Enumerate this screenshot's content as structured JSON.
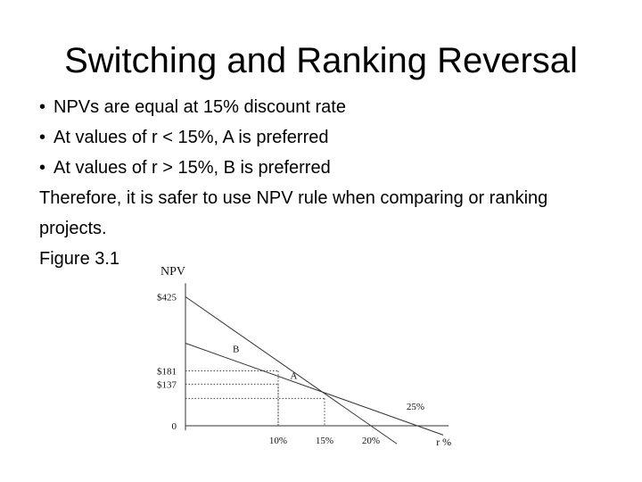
{
  "slide": {
    "title": "Switching and Ranking Reversal",
    "bullets": [
      "NPVs are equal at 15% discount rate",
      "At values of r < 15%, A is preferred",
      "At values of r > 15%, B is preferred"
    ],
    "conclusion": "Therefore, it is safer to use NPV rule when comparing or ranking projects.",
    "figure_label": "Figure 3.1"
  },
  "chart_data": {
    "type": "line",
    "ylabel": "NPV",
    "xlabel": "r %",
    "y_ticks": [
      {
        "value": 425,
        "label": "$425"
      },
      {
        "value": 181,
        "label": "$181"
      },
      {
        "value": 137,
        "label": "$137"
      },
      {
        "value": 0,
        "label": "0"
      }
    ],
    "x_ticks": [
      {
        "value": 10,
        "label": "10%"
      },
      {
        "value": 15,
        "label": "15%"
      },
      {
        "value": 20,
        "label": "20%"
      },
      {
        "value": 25,
        "label": "25%"
      }
    ],
    "series": [
      {
        "name": "A",
        "x": [
          0,
          10,
          15,
          20
        ],
        "y": [
          425,
          181,
          90,
          0
        ]
      },
      {
        "name": "B",
        "x": [
          0,
          10,
          15,
          25
        ],
        "y": [
          272,
          137,
          90,
          0
        ]
      }
    ],
    "guides": [
      {
        "x": 10,
        "y": 181
      },
      {
        "x": 10,
        "y": 137
      },
      {
        "x": 15,
        "y": 90
      }
    ],
    "xlim": [
      0,
      28
    ],
    "ylim": [
      -15,
      470
    ]
  }
}
